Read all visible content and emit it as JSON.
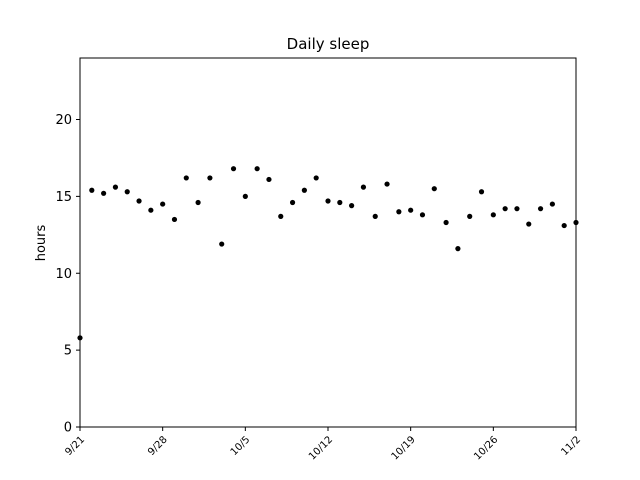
{
  "chart_data": {
    "type": "scatter",
    "title": "Daily sleep",
    "xlabel": "",
    "ylabel": "hours",
    "ylim": [
      0,
      24
    ],
    "xlim": [
      "9/21",
      "11/2"
    ],
    "yticks": [
      0,
      5,
      10,
      15,
      20
    ],
    "xtick_labels": [
      "9/21",
      "9/28",
      "10/5",
      "10/12",
      "10/19",
      "10/26",
      "11/2"
    ],
    "grid": false,
    "legend": "none",
    "marker_color": "#000000",
    "series": [
      {
        "x": [
          "9/21",
          "9/22",
          "9/23",
          "9/24",
          "9/25",
          "9/26",
          "9/27",
          "9/28",
          "9/29",
          "9/30",
          "10/1",
          "10/2",
          "10/3",
          "10/4",
          "10/5",
          "10/6",
          "10/7",
          "10/8",
          "10/9",
          "10/10",
          "10/11",
          "10/12",
          "10/13",
          "10/14",
          "10/15",
          "10/16",
          "10/17",
          "10/18",
          "10/19",
          "10/20",
          "10/21",
          "10/22",
          "10/23",
          "10/24",
          "10/25",
          "10/26",
          "10/27",
          "10/28",
          "10/29",
          "10/30",
          "10/31",
          "11/1",
          "11/2"
        ],
        "y": [
          5.8,
          15.4,
          15.2,
          15.6,
          15.3,
          14.7,
          14.1,
          14.5,
          13.5,
          16.2,
          14.6,
          16.2,
          11.9,
          16.8,
          15.0,
          16.8,
          16.1,
          13.7,
          14.6,
          15.4,
          16.2,
          14.7,
          14.6,
          14.4,
          15.6,
          13.7,
          15.8,
          14.0,
          14.1,
          13.8,
          15.5,
          13.3,
          11.6,
          13.7,
          15.3,
          13.8,
          14.2,
          14.2,
          13.2,
          14.2,
          14.5,
          13.1,
          13.3
        ]
      }
    ]
  }
}
